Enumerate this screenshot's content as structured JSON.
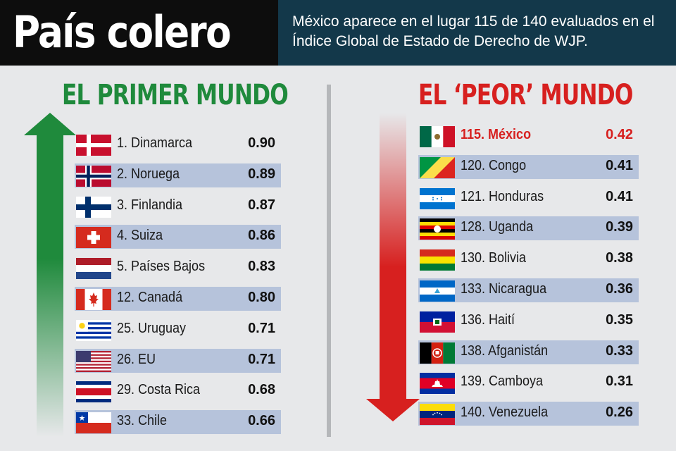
{
  "header": {
    "title": "País colero",
    "subtitle": "México aparece en el lugar 115 de 140 evaluados en el Índice Global de Estado de Derecho de WJP."
  },
  "left": {
    "title": "EL PRIMER MUNDO",
    "color": "#1f8a3c",
    "rows": [
      {
        "label": "1. Dinamarca",
        "score": "0.90",
        "flag": "denmark-flag-icon"
      },
      {
        "label": "2. Noruega",
        "score": "0.89",
        "flag": "norway-flag-icon"
      },
      {
        "label": "3. Finlandia",
        "score": "0.87",
        "flag": "finland-flag-icon"
      },
      {
        "label": "4. Suiza",
        "score": "0.86",
        "flag": "switzerland-flag-icon"
      },
      {
        "label": "5. Países Bajos",
        "score": "0.83",
        "flag": "netherlands-flag-icon"
      },
      {
        "label": "12. Canadá",
        "score": "0.80",
        "flag": "canada-flag-icon"
      },
      {
        "label": "25. Uruguay",
        "score": "0.71",
        "flag": "uruguay-flag-icon"
      },
      {
        "label": "26. EU",
        "score": "0.71",
        "flag": "usa-flag-icon"
      },
      {
        "label": "29. Costa Rica",
        "score": "0.68",
        "flag": "costa-rica-flag-icon"
      },
      {
        "label": "33. Chile",
        "score": "0.66",
        "flag": "chile-flag-icon"
      }
    ]
  },
  "right": {
    "title": "EL ‘PEOR’ MUNDO",
    "color": "#d7201f",
    "rows": [
      {
        "label": "115. México",
        "score": "0.42",
        "flag": "mexico-flag-icon",
        "highlight": true
      },
      {
        "label": "120. Congo",
        "score": "0.41",
        "flag": "congo-flag-icon"
      },
      {
        "label": "121. Honduras",
        "score": "0.41",
        "flag": "honduras-flag-icon"
      },
      {
        "label": "128. Uganda",
        "score": "0.39",
        "flag": "uganda-flag-icon"
      },
      {
        "label": "130. Bolivia",
        "score": "0.38",
        "flag": "bolivia-flag-icon"
      },
      {
        "label": "133. Nicaragua",
        "score": "0.36",
        "flag": "nicaragua-flag-icon"
      },
      {
        "label": "136. Haití",
        "score": "0.35",
        "flag": "haiti-flag-icon"
      },
      {
        "label": "138. Afganistán",
        "score": "0.33",
        "flag": "afghanistan-flag-icon"
      },
      {
        "label": "139. Camboya",
        "score": "0.31",
        "flag": "cambodia-flag-icon"
      },
      {
        "label": "140. Venezuela",
        "score": "0.26",
        "flag": "venezuela-flag-icon"
      }
    ]
  },
  "chart_data": [
    {
      "type": "table",
      "title": "EL PRIMER MUNDO",
      "categories": [
        "1. Dinamarca",
        "2. Noruega",
        "3. Finlandia",
        "4. Suiza",
        "5. Países Bajos",
        "12. Canadá",
        "25. Uruguay",
        "26. EU",
        "29. Costa Rica",
        "33. Chile"
      ],
      "values": [
        0.9,
        0.89,
        0.87,
        0.86,
        0.83,
        0.8,
        0.71,
        0.71,
        0.68,
        0.66
      ]
    },
    {
      "type": "table",
      "title": "EL ‘PEOR’ MUNDO",
      "categories": [
        "115. México",
        "120. Congo",
        "121. Honduras",
        "128. Uganda",
        "130. Bolivia",
        "133. Nicaragua",
        "136. Haití",
        "138. Afganistán",
        "139. Camboya",
        "140. Venezuela"
      ],
      "values": [
        0.42,
        0.41,
        0.41,
        0.39,
        0.38,
        0.36,
        0.35,
        0.33,
        0.31,
        0.26
      ]
    }
  ]
}
